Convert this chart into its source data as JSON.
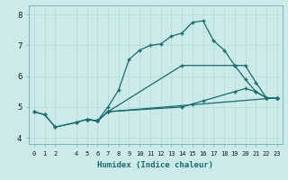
{
  "xlabel": "Humidex (Indice chaleur)",
  "ylabel": "",
  "xlim": [
    -0.5,
    23.5
  ],
  "ylim": [
    3.8,
    8.3
  ],
  "xticks": [
    0,
    1,
    2,
    4,
    5,
    6,
    7,
    8,
    9,
    10,
    11,
    12,
    13,
    14,
    15,
    16,
    17,
    18,
    19,
    20,
    21,
    22,
    23
  ],
  "yticks": [
    4,
    5,
    6,
    7,
    8
  ],
  "bg_color": "#cceaea",
  "line_color": "#1a6b6b",
  "grid_color": "#b8dede",
  "lines": [
    {
      "x": [
        0,
        1,
        2,
        4,
        5,
        6,
        7,
        8,
        9,
        10,
        11,
        12,
        13,
        14,
        15,
        16,
        17,
        18,
        19,
        20,
        21,
        22,
        23
      ],
      "y": [
        4.85,
        4.75,
        4.35,
        4.5,
        4.6,
        4.55,
        5.0,
        5.55,
        6.55,
        6.85,
        7.0,
        7.05,
        7.3,
        7.4,
        7.75,
        7.8,
        7.15,
        6.85,
        6.35,
        5.9,
        5.5,
        5.3,
        5.3
      ]
    },
    {
      "x": [
        0,
        1,
        2,
        4,
        5,
        6,
        7,
        23
      ],
      "y": [
        4.85,
        4.75,
        4.35,
        4.5,
        4.6,
        4.55,
        4.85,
        5.3
      ]
    },
    {
      "x": [
        5,
        6,
        7,
        14,
        19,
        20,
        21,
        22,
        23
      ],
      "y": [
        4.6,
        4.55,
        4.85,
        6.35,
        6.35,
        6.35,
        5.8,
        5.3,
        5.3
      ]
    },
    {
      "x": [
        5,
        6,
        7,
        14,
        15,
        16,
        19,
        20,
        21,
        22,
        23
      ],
      "y": [
        4.6,
        4.55,
        4.85,
        5.0,
        5.1,
        5.2,
        5.5,
        5.6,
        5.5,
        5.3,
        5.3
      ]
    }
  ]
}
